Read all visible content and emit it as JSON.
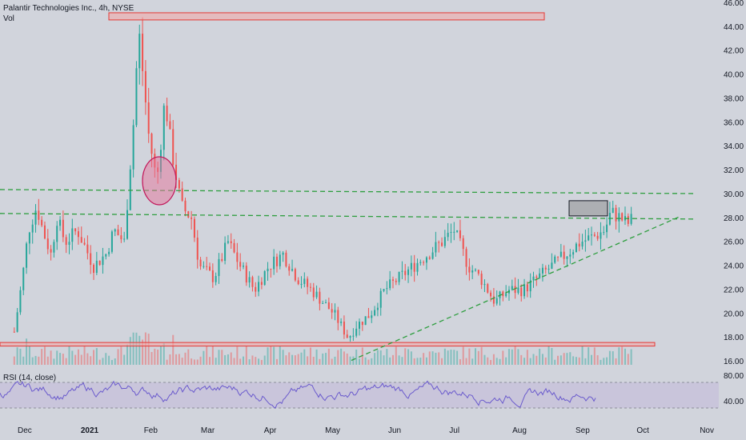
{
  "header": {
    "symbol_title": "Palantir Technologies Inc., 4h, NYSE",
    "volume_label": "Vol"
  },
  "rsi_panel": {
    "label": "RSI (14, close)"
  },
  "colors": {
    "background": "#d1d4dc",
    "up": "#26a69a",
    "down": "#ef5350",
    "trendline": "#2e9e3f",
    "rsi_line": "#6a5acd",
    "zone_fill": "#f4a6a6",
    "zone_stroke": "#e53935"
  },
  "chart_data": [
    {
      "type": "candlestick",
      "title": "Palantir Technologies Inc., 4h, NYSE",
      "x_axis": {
        "ticks": [
          "Dec",
          "2021",
          "Feb",
          "Mar",
          "Apr",
          "May",
          "Jun",
          "Jul",
          "Aug",
          "Sep",
          "Oct",
          "Nov"
        ]
      },
      "y_axis": {
        "ticks": [
          "46.00",
          "44.00",
          "42.00",
          "40.00",
          "38.00",
          "36.00",
          "34.00",
          "32.00",
          "30.00",
          "28.00",
          "26.00",
          "24.00",
          "22.00",
          "20.00",
          "18.00",
          "16.00"
        ],
        "ylim": [
          16,
          46
        ]
      },
      "series_close": [
        [
          "2020-11-27",
          18.5
        ],
        [
          "2020-12-01",
          23
        ],
        [
          "2020-12-04",
          27
        ],
        [
          "2020-12-08",
          29
        ],
        [
          "2020-12-11",
          27
        ],
        [
          "2020-12-15",
          25
        ],
        [
          "2020-12-18",
          28
        ],
        [
          "2020-12-22",
          26
        ],
        [
          "2020-12-28",
          27
        ],
        [
          "2021-01-05",
          24
        ],
        [
          "2021-01-11",
          25
        ],
        [
          "2021-01-15",
          27
        ],
        [
          "2021-01-20",
          26
        ],
        [
          "2021-01-25",
          37
        ],
        [
          "2021-01-27",
          44
        ],
        [
          "2021-02-01",
          35
        ],
        [
          "2021-02-05",
          31
        ],
        [
          "2021-02-09",
          38
        ],
        [
          "2021-02-12",
          34
        ],
        [
          "2021-02-17",
          29
        ],
        [
          "2021-02-22",
          28
        ],
        [
          "2021-02-26",
          24
        ],
        [
          "2021-03-05",
          23
        ],
        [
          "2021-03-12",
          26
        ],
        [
          "2021-03-18",
          24
        ],
        [
          "2021-03-25",
          22
        ],
        [
          "2021-04-01",
          24
        ],
        [
          "2021-04-08",
          25
        ],
        [
          "2021-04-15",
          23
        ],
        [
          "2021-04-22",
          22
        ],
        [
          "2021-05-03",
          20
        ],
        [
          "2021-05-10",
          18
        ],
        [
          "2021-05-14",
          19
        ],
        [
          "2021-05-21",
          20
        ],
        [
          "2021-05-28",
          22
        ],
        [
          "2021-06-04",
          23
        ],
        [
          "2021-06-11",
          24
        ],
        [
          "2021-06-18",
          25
        ],
        [
          "2021-06-25",
          26
        ],
        [
          "2021-07-01",
          27
        ],
        [
          "2021-07-08",
          24
        ],
        [
          "2021-07-14",
          23
        ],
        [
          "2021-07-21",
          21
        ],
        [
          "2021-07-28",
          22
        ],
        [
          "2021-08-04",
          22
        ],
        [
          "2021-08-11",
          23
        ],
        [
          "2021-08-18",
          24
        ],
        [
          "2021-08-25",
          25
        ],
        [
          "2021-09-01",
          26
        ],
        [
          "2021-09-08",
          26.5
        ],
        [
          "2021-09-13",
          27
        ],
        [
          "2021-09-16",
          28.5
        ],
        [
          "2021-09-21",
          28
        ],
        [
          "2021-09-24",
          27.5
        ],
        [
          "2021-09-27",
          28
        ]
      ],
      "annotations": {
        "horizontal_zones": [
          [
            44.6,
            45.2
          ],
          [
            17.3,
            17.6
          ]
        ],
        "dashed_levels": [
          30.2,
          28.4
        ],
        "rising_trendline": [
          [
            "2021-05-10",
            16.1
          ],
          [
            "2021-11-01",
            28.1
          ]
        ],
        "highlight_box": [
          [
            "2021-09-11",
            "2021-09-27"
          ],
          [
            28,
            29.2
          ]
        ]
      }
    },
    {
      "type": "line",
      "title": "RSI (14, close)",
      "y_axis": {
        "ticks": [
          "80.00",
          "40.00"
        ]
      },
      "guides": [
        70,
        30
      ],
      "series_note": "RSI oscillating mostly between 35 and 70"
    }
  ]
}
